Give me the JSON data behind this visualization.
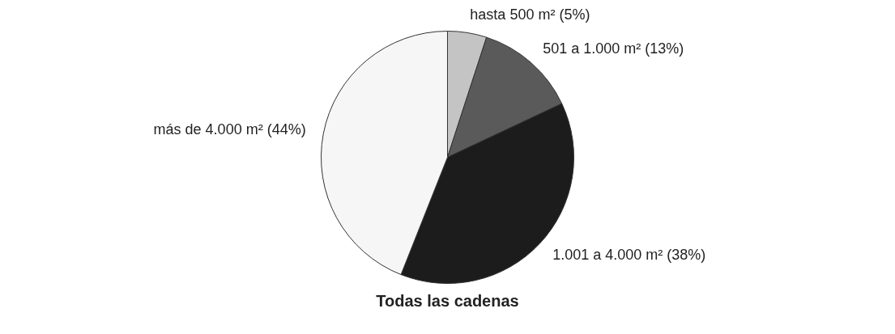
{
  "chart_data": {
    "type": "pie",
    "title": "Todas las cadenas",
    "categories": [
      "hasta 500 m² (5%)",
      "501 a 1.000 m² (13%)",
      "1.001 a 4.000 m² (38%)",
      "más de 4.000 m² (44%)"
    ],
    "values": [
      5,
      13,
      38,
      44
    ],
    "colors": [
      "#c4c4c4",
      "#5a5a5a",
      "#1c1c1c",
      "#f6f6f6"
    ],
    "legend": false
  }
}
